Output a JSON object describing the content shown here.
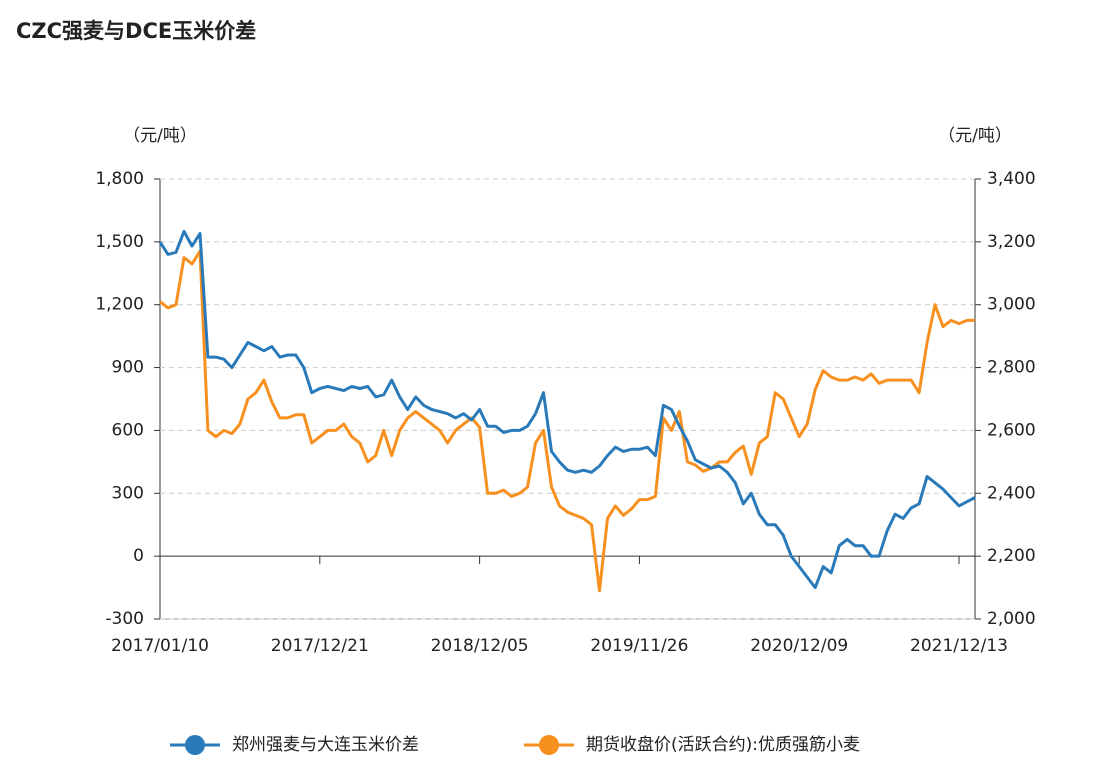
{
  "chart_data": {
    "type": "line",
    "title": "CZC强麦与DCE玉米价差",
    "y_label": "（元/吨）",
    "y2_label": "（元/吨）",
    "categories": [
      "2017/01/10",
      null,
      null,
      null,
      null,
      null,
      null,
      null,
      null,
      null,
      null,
      null,
      null,
      null,
      null,
      null,
      null,
      null,
      null,
      null,
      "2017/12/21",
      null,
      null,
      null,
      null,
      null,
      null,
      null,
      null,
      null,
      null,
      null,
      null,
      null,
      null,
      null,
      null,
      null,
      null,
      null,
      "2018/12/05",
      null,
      null,
      null,
      null,
      null,
      null,
      null,
      null,
      null,
      null,
      null,
      null,
      null,
      null,
      null,
      null,
      null,
      null,
      null,
      "2019/11/26",
      null,
      null,
      null,
      null,
      null,
      null,
      null,
      null,
      null,
      null,
      null,
      null,
      null,
      null,
      null,
      null,
      null,
      null,
      null,
      "2020/12/09",
      null,
      null,
      null,
      null,
      null,
      null,
      null,
      null,
      null,
      null,
      null,
      null,
      null,
      null,
      null,
      null,
      null,
      null,
      null,
      "2021/12/13",
      null,
      null
    ],
    "series": [
      {
        "name": "郑州强麦与大连玉米价差",
        "color": "#2a7ab9",
        "values": [
          1500,
          1440,
          1450,
          1550,
          1480,
          1540,
          950,
          950,
          940,
          900,
          960,
          1020,
          1000,
          980,
          1000,
          950,
          960,
          960,
          900,
          780,
          800,
          810,
          800,
          790,
          810,
          800,
          810,
          760,
          770,
          840,
          760,
          700,
          760,
          720,
          700,
          690,
          680,
          660,
          680,
          650,
          700,
          620,
          620,
          590,
          600,
          600,
          620,
          680,
          780,
          500,
          450,
          410,
          400,
          410,
          400,
          430,
          480,
          520,
          500,
          510,
          510,
          520,
          480,
          720,
          700,
          620,
          550,
          460,
          440,
          420,
          430,
          400,
          350,
          250,
          300,
          200,
          150,
          150,
          100,
          0,
          -50,
          -100,
          -150,
          -50,
          -80,
          50,
          80,
          50,
          50,
          0,
          0,
          120,
          200,
          180,
          230,
          250,
          380,
          350,
          320,
          280,
          240,
          260,
          280
        ]
      },
      {
        "name": "期货收盘价(活跃合约):优质强筋小麦",
        "color": "#f7901e",
        "axis": "y2",
        "values": [
          3010,
          2990,
          3000,
          3150,
          3130,
          3170,
          2600,
          2580,
          2600,
          2590,
          2620,
          2700,
          2720,
          2760,
          2690,
          2640,
          2640,
          2650,
          2650,
          2560,
          2580,
          2600,
          2600,
          2620,
          2580,
          2560,
          2500,
          2520,
          2600,
          2520,
          2600,
          2640,
          2660,
          2640,
          2620,
          2600,
          2560,
          2600,
          2620,
          2640,
          2610,
          2400,
          2400,
          2410,
          2390,
          2400,
          2420,
          2560,
          2600,
          2420,
          2360,
          2340,
          2330,
          2320,
          2300,
          2090,
          2320,
          2360,
          2330,
          2350,
          2380,
          2380,
          2390,
          2640,
          2600,
          2660,
          2500,
          2490,
          2470,
          2480,
          2500,
          2500,
          2530,
          2550,
          2460,
          2560,
          2580,
          2720,
          2700,
          2640,
          2580,
          2620,
          2730,
          2790,
          2770,
          2760,
          2760,
          2770,
          2760,
          2780,
          2750,
          2760,
          2760,
          2760,
          2760,
          2720,
          2880,
          3000,
          2930,
          2950,
          2940,
          2950,
          2950
        ]
      }
    ],
    "ylim": [
      -300,
      1800
    ],
    "yticks": [
      -300,
      0,
      300,
      600,
      900,
      {
        "value": 1200,
        "label": "1,200"
      },
      {
        "value": 1500,
        "label": "1,500"
      },
      {
        "value": 1800,
        "label": "1,800"
      }
    ],
    "y2lim": [
      2000,
      3400
    ],
    "y2ticks": [
      {
        "value": 2000,
        "label": "2,000"
      },
      {
        "value": 2200,
        "label": "2,200"
      },
      {
        "value": 2400,
        "label": "2,400"
      },
      {
        "value": 2600,
        "label": "2,600"
      },
      {
        "value": 2800,
        "label": "2,800"
      },
      {
        "value": 3000,
        "label": "3,000"
      },
      {
        "value": 3200,
        "label": "3,200"
      },
      {
        "value": 3400,
        "label": "3,400"
      }
    ],
    "grid": true
  }
}
